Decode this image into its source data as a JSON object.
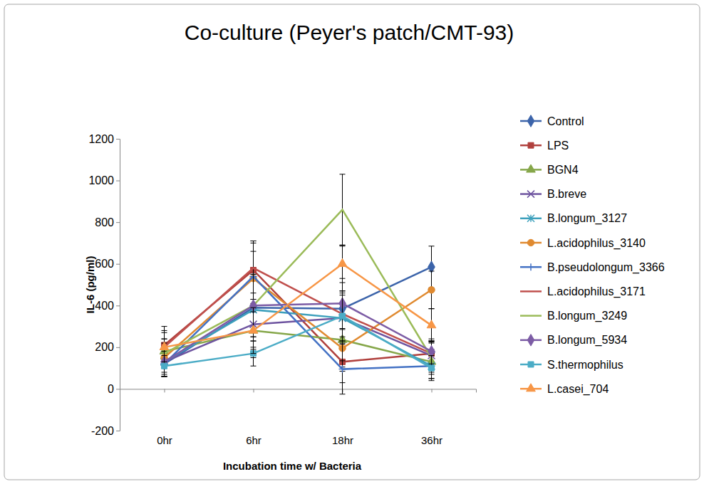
{
  "chart_data": {
    "type": "line",
    "title": "Co-culture (Peyer's patch/CMT-93)",
    "x_label": "Incubation time w/ Bacteria",
    "y_label": "IL-6 (pg/ml)",
    "categories": [
      "0hr",
      "6hr",
      "18hr",
      "36hr"
    ],
    "ylim": [
      -200,
      1200
    ],
    "yticks": [
      -200,
      0,
      200,
      400,
      600,
      800,
      1000,
      1200
    ],
    "grid": false,
    "legend": "right",
    "series": [
      {
        "name": "Control",
        "color": "#3c64aa",
        "marker": "diamond",
        "values": [
          120,
          390,
          385,
          585
        ],
        "errors": [
          60,
          190,
          300,
          100
        ]
      },
      {
        "name": "LPS",
        "color": "#b0403d",
        "marker": "square",
        "values": [
          210,
          570,
          130,
          170
        ],
        "errors": [
          90,
          140,
          100,
          60
        ]
      },
      {
        "name": "BGN4",
        "color": "#86a74a",
        "marker": "triangle",
        "values": [
          180,
          280,
          235,
          130
        ],
        "errors": [
          60,
          130,
          100,
          60
        ]
      },
      {
        "name": "B.breve",
        "color": "#6e54a0",
        "marker": "x",
        "values": [
          130,
          310,
          340,
          160
        ],
        "errors": [
          70,
          120,
          110,
          70
        ]
      },
      {
        "name": "B.longum_3127",
        "color": "#3da0bc",
        "marker": "asterisk",
        "values": [
          130,
          380,
          340,
          110
        ],
        "errors": [
          60,
          150,
          120,
          60
        ]
      },
      {
        "name": "L.acidophilus_3140",
        "color": "#e08a30",
        "marker": "circle",
        "values": [
          150,
          530,
          195,
          475
        ],
        "errors": [
          70,
          130,
          90,
          90
        ]
      },
      {
        "name": "B.pseudolongum_3366",
        "color": "#4472c4",
        "marker": "plus",
        "values": [
          120,
          540,
          95,
          110
        ],
        "errors": [
          60,
          170,
          120,
          60
        ]
      },
      {
        "name": "L.acidophilus_3171",
        "color": "#c0504d",
        "marker": "none",
        "values": [
          200,
          580,
          360,
          170
        ],
        "errors": [
          80,
          120,
          110,
          60
        ]
      },
      {
        "name": "B.longum_3249",
        "color": "#9bbb59",
        "marker": "none",
        "values": [
          170,
          400,
          860,
          150
        ],
        "errors": [
          70,
          150,
          170,
          70
        ]
      },
      {
        "name": "B.longum_5934",
        "color": "#7c5ca5",
        "marker": "diamond",
        "values": [
          130,
          400,
          410,
          180
        ],
        "errors": [
          70,
          150,
          120,
          60
        ]
      },
      {
        "name": "S.thermophilus",
        "color": "#4bacc6",
        "marker": "square",
        "values": [
          110,
          170,
          350,
          100
        ],
        "errors": [
          50,
          60,
          120,
          60
        ]
      },
      {
        "name": "L.casei_704",
        "color": "#f79646",
        "marker": "triangle",
        "values": [
          200,
          280,
          600,
          305
        ],
        "errors": [
          70,
          110,
          90,
          80
        ]
      }
    ]
  }
}
